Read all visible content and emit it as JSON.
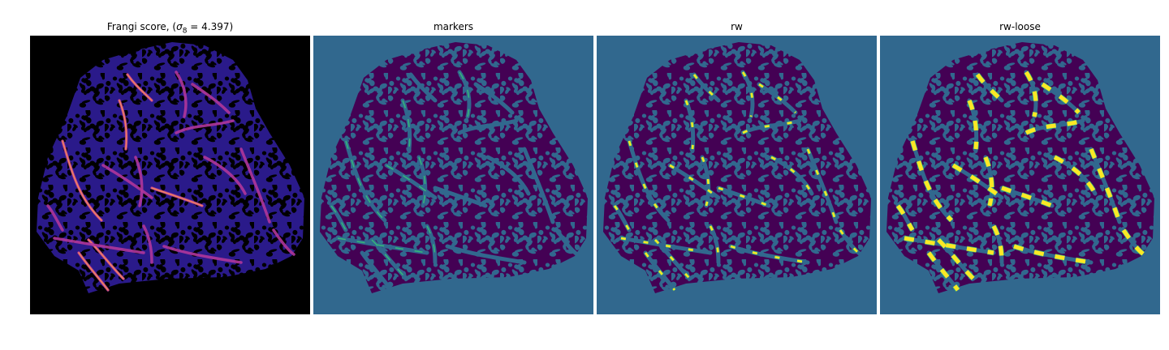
{
  "panels": [
    {
      "id": "frangi",
      "title_prefix": "Frangi score, (",
      "title_sigma": "σ",
      "title_sub": "8",
      "title_suffix": " = 4.397)"
    },
    {
      "id": "markers",
      "title": "markers"
    },
    {
      "id": "rw",
      "title": "rw"
    },
    {
      "id": "rw-loose",
      "title": "rw-loose"
    }
  ],
  "colors": {
    "frangi_background": "#000000",
    "frangi_tissue": "#2a1a8a",
    "frangi_vessel_bright": "#f08060",
    "frangi_vessel_mid": "#b0369a",
    "segmentation_background": "#31688e",
    "segmentation_tissue": "#440154",
    "marker_green": "#35b779",
    "highlight_yellow": "#fde725"
  }
}
